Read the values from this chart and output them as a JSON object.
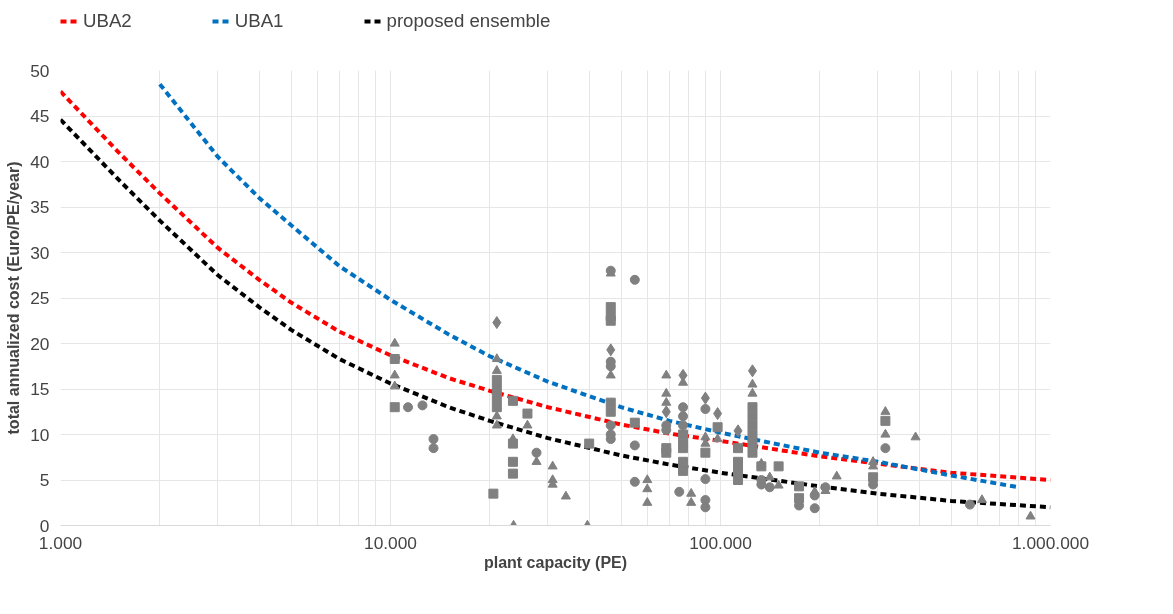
{
  "chart_data": {
    "type": "line",
    "xlabel": "plant capacity (PE)",
    "ylabel": "total annualized cost (Euro/PE/year)",
    "log": "x",
    "grid": true,
    "legend": "top",
    "line_style": "dashed",
    "xlim": [
      1000,
      1000000
    ],
    "xticks": [
      {
        "value": 1000,
        "label": "1.000"
      },
      {
        "value": 2000,
        "label": null
      },
      {
        "value": 3000,
        "label": null
      },
      {
        "value": 4000,
        "label": null
      },
      {
        "value": 5000,
        "label": null
      },
      {
        "value": 6000,
        "label": null
      },
      {
        "value": 7000,
        "label": null
      },
      {
        "value": 8000,
        "label": null
      },
      {
        "value": 9000,
        "label": null
      },
      {
        "value": 10000,
        "label": "10.000"
      },
      {
        "value": 20000,
        "label": null
      },
      {
        "value": 30000,
        "label": null
      },
      {
        "value": 40000,
        "label": null
      },
      {
        "value": 50000,
        "label": null
      },
      {
        "value": 60000,
        "label": null
      },
      {
        "value": 70000,
        "label": null
      },
      {
        "value": 80000,
        "label": null
      },
      {
        "value": 90000,
        "label": null
      },
      {
        "value": 100000,
        "label": "100.000"
      },
      {
        "value": 200000,
        "label": null
      },
      {
        "value": 300000,
        "label": null
      },
      {
        "value": 400000,
        "label": null
      },
      {
        "value": 500000,
        "label": null
      },
      {
        "value": 600000,
        "label": null
      },
      {
        "value": 700000,
        "label": null
      },
      {
        "value": 800000,
        "label": null
      },
      {
        "value": 900000,
        "label": null
      },
      {
        "value": 1000000,
        "label": "1.000.000"
      }
    ],
    "ylim": [
      0,
      50
    ],
    "yticks": [
      0,
      5,
      10,
      15,
      20,
      25,
      30,
      35,
      40,
      45,
      50
    ],
    "series": [
      {
        "name": "UBA2",
        "color": "#ff0000",
        "x": [
          1000,
          1500,
          2000,
          3000,
          4000,
          5000,
          7000,
          10000,
          15000,
          20000,
          30000,
          50000,
          70000,
          100000,
          200000,
          300000,
          500000,
          1000000
        ],
        "values": [
          47.7,
          41,
          36.5,
          30.5,
          27,
          24.5,
          21.3,
          18.7,
          16.2,
          14.8,
          13,
          11.1,
          10.1,
          9.3,
          7.6,
          6.8,
          5.8,
          5
        ]
      },
      {
        "name": "UBA1",
        "color": "#0070c0",
        "x": [
          2000,
          3000,
          4000,
          5000,
          7000,
          10000,
          15000,
          20000,
          30000,
          50000,
          70000,
          100000,
          200000,
          300000,
          500000,
          800000
        ],
        "values": [
          48.5,
          40.5,
          36,
          33,
          28.5,
          24.8,
          21,
          18.6,
          15.8,
          13,
          11.5,
          10.2,
          8,
          7,
          5.5,
          4.2
        ]
      },
      {
        "name": "proposed ensemble",
        "color": "#000000",
        "x": [
          1000,
          1500,
          2000,
          3000,
          4000,
          5000,
          7000,
          10000,
          15000,
          20000,
          30000,
          50000,
          70000,
          100000,
          200000,
          300000,
          500000,
          1000000
        ],
        "values": [
          44.6,
          38,
          33.5,
          27.5,
          24,
          21.5,
          18.3,
          15.6,
          13,
          11.5,
          9.6,
          7.7,
          6.7,
          5.8,
          4.3,
          3.5,
          2.7,
          2
        ]
      },
      {
        "type": "scatter",
        "marker": "circle",
        "color": "#808080",
        "x": [
          11300,
          12500,
          13500,
          13500,
          27700,
          46500,
          46500,
          46500,
          46500,
          46500,
          46500,
          55000,
          55000,
          55000,
          68500,
          68500,
          75000,
          77000,
          77000,
          77000,
          90000,
          90000,
          90000,
          90000,
          133000,
          133000,
          141000,
          173000,
          193000,
          193000,
          208000,
          290000,
          316000,
          570000
        ],
        "values": [
          13,
          13.2,
          8.5,
          9.5,
          8,
          28,
          18,
          17.5,
          11,
          10,
          9.5,
          27,
          8.8,
          4.8,
          11,
          10.5,
          3.7,
          13,
          12,
          11,
          5.1,
          2.8,
          2,
          12.8,
          5,
          4.5,
          4.2,
          2.2,
          3.3,
          1.9,
          4.2,
          4.5,
          8.5,
          2.3
        ]
      },
      {
        "type": "scatter",
        "marker": "square",
        "color": "#808080",
        "x": [
          10300,
          10300,
          20500,
          21000,
          21000,
          21000,
          21000,
          23500,
          23500,
          23500,
          23500,
          26000,
          40000,
          46500,
          46500,
          46500,
          46500,
          46500,
          55000,
          68500,
          68500,
          77000,
          77000,
          77000,
          77000,
          77000,
          90000,
          98000,
          113000,
          113000,
          113000,
          113000,
          125000,
          125000,
          125000,
          125000,
          125000,
          125000,
          133000,
          150000,
          173000,
          173000,
          290000,
          316000
        ],
        "values": [
          18.3,
          13,
          3.5,
          16,
          15,
          14,
          13,
          13.7,
          9,
          7,
          5.7,
          12.3,
          9,
          24,
          23,
          22.5,
          13.5,
          12.5,
          11.3,
          8.5,
          8,
          10,
          9,
          8.5,
          7,
          6,
          8,
          10.8,
          8.5,
          7,
          6,
          5,
          13,
          12,
          11,
          10,
          9,
          8,
          6.5,
          6.5,
          4.3,
          3,
          5.3,
          11.5
        ]
      },
      {
        "type": "scatter",
        "marker": "triangle",
        "color": "#808080",
        "x": [
          10300,
          10300,
          10300,
          21000,
          21000,
          21000,
          21000,
          23500,
          23600,
          26000,
          27700,
          31000,
          31000,
          31000,
          34000,
          39500,
          46500,
          46500,
          60000,
          60000,
          60000,
          68500,
          68500,
          68500,
          77000,
          81500,
          81500,
          90000,
          90000,
          98000,
          125000,
          125000,
          133000,
          141000,
          150000,
          193000,
          208000,
          225000,
          290000,
          290000,
          316000,
          316000,
          390000,
          620000,
          870000
        ],
        "values": [
          20,
          16.5,
          15.3,
          18.3,
          17,
          12,
          11,
          9.5,
          0,
          11,
          7,
          6.5,
          5,
          4.5,
          3.2,
          0,
          27.7,
          16.5,
          5,
          4,
          2.5,
          16.5,
          14.5,
          13.5,
          15.7,
          3.5,
          2.5,
          9.7,
          9,
          9.5,
          15.5,
          14.5,
          6.8,
          5.3,
          4.4,
          3.7,
          3.8,
          5.4,
          7,
          6.5,
          12.5,
          10,
          9.7,
          2.8,
          1
        ]
      },
      {
        "type": "scatter",
        "marker": "diamond",
        "color": "#808080",
        "x": [
          21000,
          46500,
          68500,
          77000,
          90000,
          98000,
          113000,
          125000
        ],
        "values": [
          22.3,
          19.3,
          12.5,
          16.5,
          14,
          12.3,
          10.4,
          17
        ]
      }
    ]
  }
}
